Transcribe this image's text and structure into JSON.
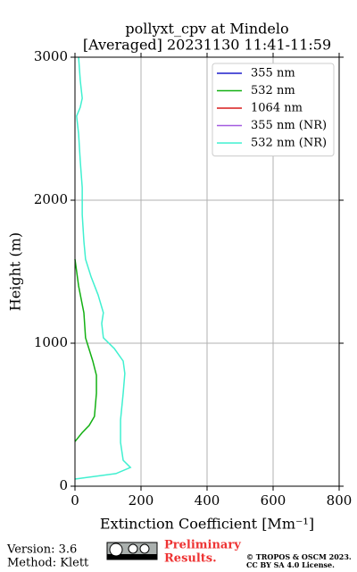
{
  "chart_data": {
    "type": "line",
    "title": [
      "pollyxt_cpv at Mindelo",
      "[Averaged] 20231130 11:41-11:59"
    ],
    "xlabel": "Extinction Coefficient [Mm⁻¹]",
    "ylabel": "Height (m)",
    "xlim": [
      0,
      800
    ],
    "ylim": [
      0,
      3000
    ],
    "xticks": [
      0,
      200,
      400,
      600,
      800
    ],
    "yticks": [
      0,
      1000,
      2000,
      3000
    ],
    "grid": true,
    "legend": "upper right",
    "series": [
      {
        "name": "355 nm",
        "color": "#1f1fcc",
        "x": [],
        "y": []
      },
      {
        "name": "532 nm",
        "color": "#13b013",
        "x": [
          0,
          22,
          43,
          59,
          65,
          65,
          54,
          32,
          27,
          11,
          0
        ],
        "y": [
          312,
          375,
          425,
          488,
          650,
          775,
          875,
          1038,
          1213,
          1400,
          1588
        ]
      },
      {
        "name": "1064 nm",
        "color": "#d81c1c",
        "x": [],
        "y": []
      },
      {
        "name": "355 nm (NR)",
        "color": "#a35ae0",
        "x": [],
        "y": []
      },
      {
        "name": "532 nm (NR)",
        "color": "#40f0d0",
        "x": [
          0,
          124,
          168,
          146,
          138,
          138,
          146,
          151,
          146,
          119,
          86,
          81,
          86,
          70,
          49,
          32,
          27,
          22,
          22,
          16,
          11,
          5,
          16,
          22,
          16,
          11
        ],
        "y": [
          50,
          88,
          131,
          181,
          306,
          463,
          650,
          788,
          875,
          963,
          1038,
          1138,
          1213,
          1338,
          1463,
          1588,
          1713,
          1900,
          2088,
          2275,
          2463,
          2588,
          2650,
          2713,
          2838,
          3000
        ]
      }
    ]
  },
  "footer": {
    "version": "Version: 3.6",
    "method": "Method: Klett",
    "status": [
      "Preliminary",
      "Results."
    ],
    "copyright": [
      "© TROPOS & OSCM 2023.",
      "CC BY SA 4.0 License."
    ]
  }
}
